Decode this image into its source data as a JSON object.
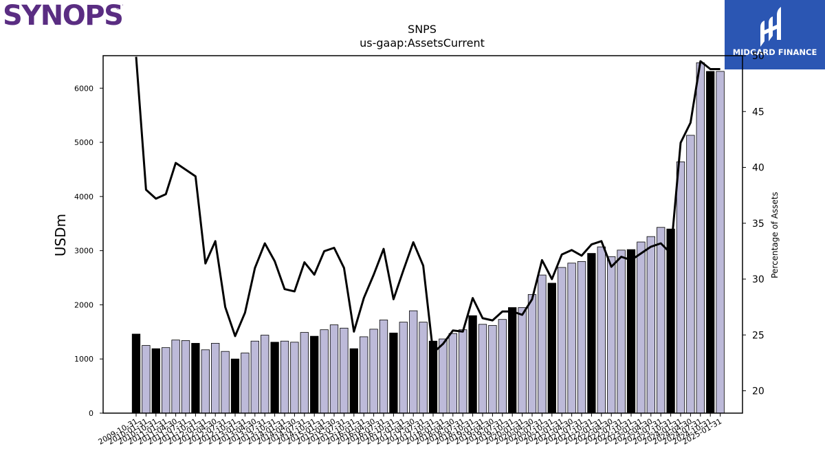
{
  "brand": {
    "company": "SYNOPSYS",
    "company_color": "#5a2d82",
    "publisher": "MIDGARD FINANCE",
    "publisher_color": "#2b56b3"
  },
  "chart_data": {
    "type": "bar",
    "title": "SNPS",
    "subtitle": "us-gaap:AssetsCurrent",
    "ylabel": "USDm",
    "y2label": "Percentage of Assets",
    "ylim": [
      0,
      6600
    ],
    "y2lim": [
      18,
      50
    ],
    "yticks": [
      0,
      1000,
      2000,
      3000,
      4000,
      5000,
      6000
    ],
    "y2ticks": [
      20,
      25,
      30,
      35,
      40,
      45,
      50
    ],
    "bar_color_quarter": "#bdbad9",
    "bar_color_fiscal_year_end": "#000000",
    "line_color": "#000000",
    "categories": [
      "2009-10-31",
      "2010-01-31",
      "2010-10-31",
      "2011-01-31",
      "2011-04-30",
      "2011-07-31",
      "2011-10-31",
      "2012-01-31",
      "2012-04-30",
      "2012-07-31",
      "2012-10-31",
      "2013-01-31",
      "2013-04-30",
      "2013-07-31",
      "2013-10-31",
      "2014-01-31",
      "2014-04-30",
      "2014-07-31",
      "2014-10-31",
      "2015-01-31",
      "2015-04-30",
      "2015-07-31",
      "2015-10-31",
      "2016-01-31",
      "2016-04-30",
      "2016-07-31",
      "2016-10-31",
      "2017-01-31",
      "2017-04-30",
      "2017-07-31",
      "2017-10-31",
      "2018-01-31",
      "2018-04-30",
      "2018-07-31",
      "2018-10-31",
      "2019-01-31",
      "2019-04-30",
      "2019-07-31",
      "2019-10-31",
      "2020-01-31",
      "2020-04-30",
      "2020-07-31",
      "2020-10-31",
      "2021-01-31",
      "2021-04-30",
      "2021-07-31",
      "2021-10-31",
      "2022-01-31",
      "2022-04-30",
      "2022-07-31",
      "2022-10-31",
      "2023-01-31",
      "2023-04-30",
      "2023-07-31",
      "2023-10-31",
      "2024-01-31",
      "2024-04-30",
      "2024-07-31",
      "2024-10-31",
      "2025-01-31"
    ],
    "series": [
      {
        "name": "USDm",
        "values": [
          1460,
          1250,
          1190,
          1210,
          1350,
          1340,
          1290,
          1170,
          1290,
          1140,
          1000,
          1110,
          1330,
          1440,
          1310,
          1330,
          1310,
          1490,
          1420,
          1540,
          1630,
          1570,
          1190,
          1410,
          1550,
          1720,
          1480,
          1680,
          1890,
          1680,
          1330,
          1370,
          1470,
          1540,
          1800,
          1640,
          1620,
          1730,
          1950,
          1950,
          2190,
          2550,
          2400,
          2690,
          2770,
          2800,
          2950,
          3070,
          2890,
          3010,
          3020,
          3160,
          3260,
          3430,
          3400,
          4640,
          5130,
          6470,
          6310,
          6310
        ],
        "fiscal_year_end": [
          true,
          false,
          true,
          false,
          false,
          false,
          true,
          false,
          false,
          false,
          true,
          false,
          false,
          false,
          true,
          false,
          false,
          false,
          true,
          false,
          false,
          false,
          true,
          false,
          false,
          false,
          true,
          false,
          false,
          false,
          true,
          false,
          false,
          false,
          true,
          false,
          false,
          false,
          true,
          false,
          false,
          false,
          true,
          false,
          false,
          false,
          true,
          false,
          false,
          false,
          true,
          false,
          false,
          false,
          true,
          false,
          false,
          false,
          true,
          false
        ]
      },
      {
        "name": "Percentage of Assets",
        "axis": "right",
        "values": [
          49.9,
          38.0,
          37.2,
          37.6,
          40.4,
          39.8,
          39.2,
          31.4,
          33.4,
          27.5,
          24.9,
          27.0,
          31.0,
          33.2,
          31.6,
          29.1,
          28.9,
          31.5,
          30.4,
          32.5,
          32.8,
          31.0,
          25.3,
          28.3,
          30.4,
          32.7,
          28.2,
          30.8,
          33.3,
          31.2,
          23.4,
          24.2,
          25.4,
          25.3,
          28.3,
          26.5,
          26.3,
          27.1,
          27.1,
          26.8,
          28.2,
          31.7,
          30.0,
          32.2,
          32.6,
          32.1,
          33.1,
          33.4,
          31.1,
          32.0,
          31.7,
          32.3,
          32.9,
          33.2,
          32.3,
          42.2,
          44.0,
          49.5,
          48.8,
          48.8
        ]
      }
    ]
  }
}
